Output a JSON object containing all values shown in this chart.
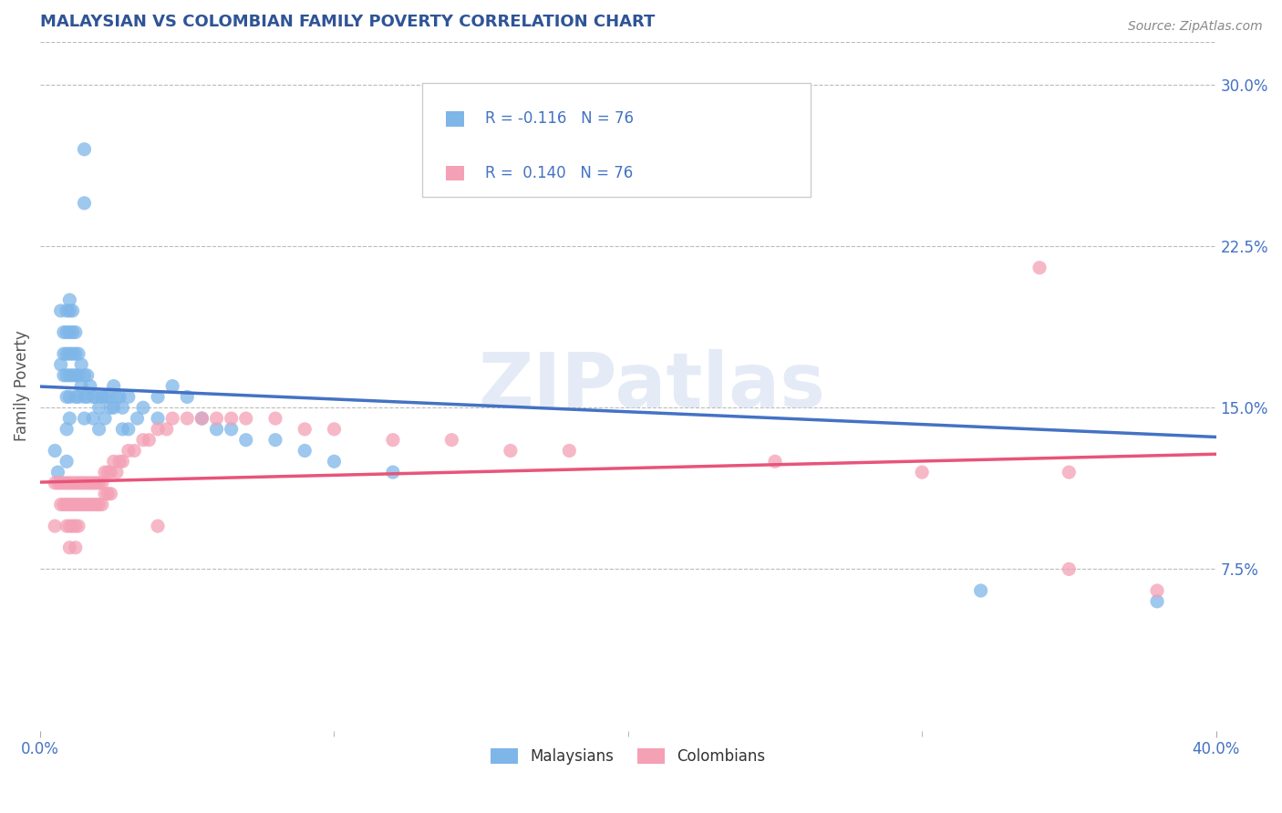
{
  "title": "MALAYSIAN VS COLOMBIAN FAMILY POVERTY CORRELATION CHART",
  "source_text": "Source: ZipAtlas.com",
  "ylabel": "Family Poverty",
  "xlim": [
    0.0,
    0.4
  ],
  "ylim": [
    0.0,
    0.32
  ],
  "ytick_positions": [
    0.075,
    0.15,
    0.225,
    0.3
  ],
  "ytick_labels": [
    "7.5%",
    "15.0%",
    "22.5%",
    "30.0%"
  ],
  "xtick_positions": [
    0.0,
    0.4
  ],
  "xtick_labels": [
    "0.0%",
    "40.0%"
  ],
  "malaysian_color": "#7EB6E8",
  "colombian_color": "#F4A0B5",
  "malaysian_line_color": "#4472C4",
  "colombian_line_color": "#E8547A",
  "r_malaysian": -0.116,
  "r_colombian": 0.14,
  "n": 76,
  "watermark_text": "ZIPatlas",
  "background_color": "#FFFFFF",
  "grid_color": "#BBBBBB",
  "title_color": "#2F5496",
  "source_color": "#888888",
  "tick_color": "#4472C4",
  "malaysian_points": [
    [
      0.005,
      0.13
    ],
    [
      0.006,
      0.12
    ],
    [
      0.007,
      0.195
    ],
    [
      0.007,
      0.17
    ],
    [
      0.008,
      0.185
    ],
    [
      0.008,
      0.175
    ],
    [
      0.008,
      0.165
    ],
    [
      0.009,
      0.195
    ],
    [
      0.009,
      0.185
    ],
    [
      0.009,
      0.175
    ],
    [
      0.009,
      0.165
    ],
    [
      0.009,
      0.155
    ],
    [
      0.009,
      0.14
    ],
    [
      0.009,
      0.125
    ],
    [
      0.01,
      0.2
    ],
    [
      0.01,
      0.195
    ],
    [
      0.01,
      0.185
    ],
    [
      0.01,
      0.175
    ],
    [
      0.01,
      0.165
    ],
    [
      0.01,
      0.155
    ],
    [
      0.01,
      0.145
    ],
    [
      0.011,
      0.195
    ],
    [
      0.011,
      0.185
    ],
    [
      0.011,
      0.175
    ],
    [
      0.011,
      0.165
    ],
    [
      0.012,
      0.185
    ],
    [
      0.012,
      0.175
    ],
    [
      0.012,
      0.165
    ],
    [
      0.012,
      0.155
    ],
    [
      0.013,
      0.175
    ],
    [
      0.013,
      0.165
    ],
    [
      0.013,
      0.155
    ],
    [
      0.014,
      0.17
    ],
    [
      0.014,
      0.16
    ],
    [
      0.015,
      0.165
    ],
    [
      0.015,
      0.155
    ],
    [
      0.015,
      0.145
    ],
    [
      0.016,
      0.165
    ],
    [
      0.016,
      0.155
    ],
    [
      0.017,
      0.16
    ],
    [
      0.018,
      0.155
    ],
    [
      0.018,
      0.145
    ],
    [
      0.019,
      0.155
    ],
    [
      0.02,
      0.15
    ],
    [
      0.02,
      0.14
    ],
    [
      0.021,
      0.155
    ],
    [
      0.022,
      0.155
    ],
    [
      0.022,
      0.145
    ],
    [
      0.023,
      0.155
    ],
    [
      0.024,
      0.15
    ],
    [
      0.025,
      0.16
    ],
    [
      0.025,
      0.15
    ],
    [
      0.026,
      0.155
    ],
    [
      0.027,
      0.155
    ],
    [
      0.028,
      0.15
    ],
    [
      0.028,
      0.14
    ],
    [
      0.03,
      0.155
    ],
    [
      0.03,
      0.14
    ],
    [
      0.033,
      0.145
    ],
    [
      0.035,
      0.15
    ],
    [
      0.04,
      0.155
    ],
    [
      0.04,
      0.145
    ],
    [
      0.045,
      0.16
    ],
    [
      0.05,
      0.155
    ],
    [
      0.055,
      0.145
    ],
    [
      0.06,
      0.14
    ],
    [
      0.065,
      0.14
    ],
    [
      0.07,
      0.135
    ],
    [
      0.08,
      0.135
    ],
    [
      0.09,
      0.13
    ],
    [
      0.1,
      0.125
    ],
    [
      0.12,
      0.12
    ],
    [
      0.015,
      0.27
    ],
    [
      0.015,
      0.245
    ],
    [
      0.38,
      0.06
    ],
    [
      0.32,
      0.065
    ]
  ],
  "colombian_points": [
    [
      0.005,
      0.115
    ],
    [
      0.006,
      0.115
    ],
    [
      0.007,
      0.115
    ],
    [
      0.007,
      0.105
    ],
    [
      0.008,
      0.115
    ],
    [
      0.008,
      0.105
    ],
    [
      0.009,
      0.115
    ],
    [
      0.009,
      0.105
    ],
    [
      0.009,
      0.095
    ],
    [
      0.01,
      0.115
    ],
    [
      0.01,
      0.105
    ],
    [
      0.01,
      0.095
    ],
    [
      0.01,
      0.085
    ],
    [
      0.011,
      0.115
    ],
    [
      0.011,
      0.105
    ],
    [
      0.011,
      0.095
    ],
    [
      0.012,
      0.115
    ],
    [
      0.012,
      0.105
    ],
    [
      0.012,
      0.095
    ],
    [
      0.012,
      0.085
    ],
    [
      0.013,
      0.115
    ],
    [
      0.013,
      0.105
    ],
    [
      0.013,
      0.095
    ],
    [
      0.014,
      0.115
    ],
    [
      0.014,
      0.105
    ],
    [
      0.015,
      0.115
    ],
    [
      0.015,
      0.105
    ],
    [
      0.016,
      0.115
    ],
    [
      0.016,
      0.105
    ],
    [
      0.017,
      0.115
    ],
    [
      0.017,
      0.105
    ],
    [
      0.018,
      0.115
    ],
    [
      0.018,
      0.105
    ],
    [
      0.019,
      0.115
    ],
    [
      0.019,
      0.105
    ],
    [
      0.02,
      0.115
    ],
    [
      0.02,
      0.105
    ],
    [
      0.021,
      0.115
    ],
    [
      0.021,
      0.105
    ],
    [
      0.022,
      0.12
    ],
    [
      0.022,
      0.11
    ],
    [
      0.023,
      0.12
    ],
    [
      0.023,
      0.11
    ],
    [
      0.024,
      0.12
    ],
    [
      0.024,
      0.11
    ],
    [
      0.025,
      0.125
    ],
    [
      0.026,
      0.12
    ],
    [
      0.027,
      0.125
    ],
    [
      0.028,
      0.125
    ],
    [
      0.03,
      0.13
    ],
    [
      0.032,
      0.13
    ],
    [
      0.035,
      0.135
    ],
    [
      0.037,
      0.135
    ],
    [
      0.04,
      0.14
    ],
    [
      0.043,
      0.14
    ],
    [
      0.045,
      0.145
    ],
    [
      0.05,
      0.145
    ],
    [
      0.055,
      0.145
    ],
    [
      0.06,
      0.145
    ],
    [
      0.065,
      0.145
    ],
    [
      0.07,
      0.145
    ],
    [
      0.08,
      0.145
    ],
    [
      0.09,
      0.14
    ],
    [
      0.1,
      0.14
    ],
    [
      0.12,
      0.135
    ],
    [
      0.14,
      0.135
    ],
    [
      0.16,
      0.13
    ],
    [
      0.18,
      0.13
    ],
    [
      0.25,
      0.125
    ],
    [
      0.3,
      0.12
    ],
    [
      0.34,
      0.215
    ],
    [
      0.35,
      0.12
    ],
    [
      0.35,
      0.075
    ],
    [
      0.38,
      0.065
    ],
    [
      0.04,
      0.095
    ],
    [
      0.005,
      0.095
    ]
  ]
}
